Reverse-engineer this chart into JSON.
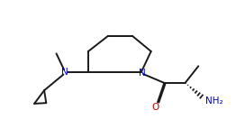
{
  "bg_color": "#ffffff",
  "line_color": "#1a1a1a",
  "N_color": "#0000cc",
  "O_color": "#cc0000",
  "line_width": 1.4,
  "figsize": [
    2.62,
    1.53
  ],
  "dpi": 100,
  "xlim": [
    0.0,
    10.5
  ],
  "ylim": [
    0.5,
    6.2
  ]
}
